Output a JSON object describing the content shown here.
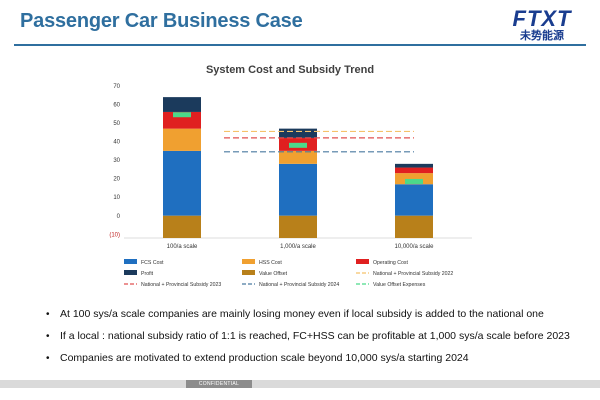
{
  "slide": {
    "title": "Passenger Car Business Case",
    "logo_text": "FTXT",
    "logo_sub": "未势能源",
    "footer_label": "CONFIDENTIAL"
  },
  "bullets": [
    "At 100 sys/a scale companies are mainly losing money even if local subsidy is added to the national one",
    "If a local : national subsidy ratio of 1:1 is reached, FC+HSS can be profitable at 1,000 sys/a scale before 2023",
    "Companies are motivated to extend production scale beyond 10,000 sys/a starting 2024"
  ],
  "chart_data": {
    "type": "bar",
    "title": "System Cost and Subsidy Trend",
    "categories": [
      "100/a scale",
      "1,000/a scale",
      "10,000/a scale"
    ],
    "y_ticks": [
      "70",
      "60",
      "50",
      "40",
      "30",
      "20",
      "10",
      "0",
      "(10)"
    ],
    "ylim": [
      -12,
      70
    ],
    "grid": false,
    "legend_position": "bottom",
    "series": [
      {
        "name": "FCS Cost",
        "color": "#1f6fc0",
        "values": [
          35,
          28,
          17
        ]
      },
      {
        "name": "HSS Cost",
        "color": "#f0a030",
        "values": [
          12,
          7,
          6
        ]
      },
      {
        "name": "Operating Cost",
        "color": "#e02020",
        "values": [
          9,
          7,
          3
        ]
      },
      {
        "name": "Profit",
        "color": "#1b3a5c",
        "values": [
          8,
          5,
          2
        ]
      },
      {
        "name": "Value Offset",
        "color": "#b8801a",
        "values": [
          -12,
          -12,
          -12
        ]
      }
    ],
    "lines": [
      {
        "name": "National + Provincial Subsidy 2022",
        "color": "#f5c26b",
        "y": 45.5
      },
      {
        "name": "National + Provincial Subsidy 2023",
        "color": "#e05050",
        "y": 42
      },
      {
        "name": "National + Provincial Subsidy 2024",
        "color": "#4a7aa0",
        "y": 34.5
      }
    ],
    "value_offset_expenses": {
      "name": "Value Offset Expenses",
      "color": "#4cd98a",
      "values": [
        54.5,
        38,
        18.5
      ]
    }
  }
}
